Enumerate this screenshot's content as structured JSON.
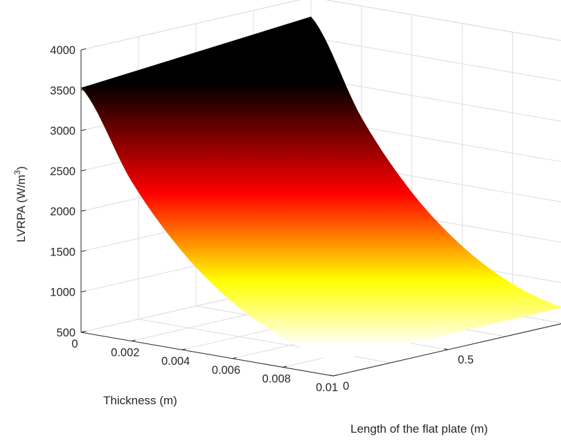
{
  "chart_data": {
    "type": "surface",
    "title": "",
    "xlabel": "Thickness (m)",
    "ylabel": "Length of the flat plate (m)",
    "zlabel_main": "LVRPA (W/m",
    "zlabel_sup": "3",
    "zlabel_close": ")",
    "x_ticks": [
      "0",
      "0.002",
      "0.004",
      "0.006",
      "0.008",
      "0.01"
    ],
    "y_ticks": [
      "0",
      "0.5"
    ],
    "z_ticks": [
      "500",
      "1000",
      "1500",
      "2000",
      "2500",
      "3000",
      "3500",
      "4000"
    ],
    "xlim": [
      0,
      0.01
    ],
    "ylim": [
      0,
      1
    ],
    "zlim": [
      500,
      4000
    ],
    "grid": true,
    "colormap": "hot (reversed)",
    "surface": {
      "description": "LVRPA decreases with thickness, nearly constant along plate length",
      "x": [
        0,
        0.002,
        0.004,
        0.006,
        0.008,
        0.01
      ],
      "z_at_y0": [
        3530,
        2480,
        1720,
        1200,
        870,
        680
      ],
      "z_at_y1": [
        3760,
        2620,
        1800,
        1240,
        880,
        700
      ]
    }
  }
}
